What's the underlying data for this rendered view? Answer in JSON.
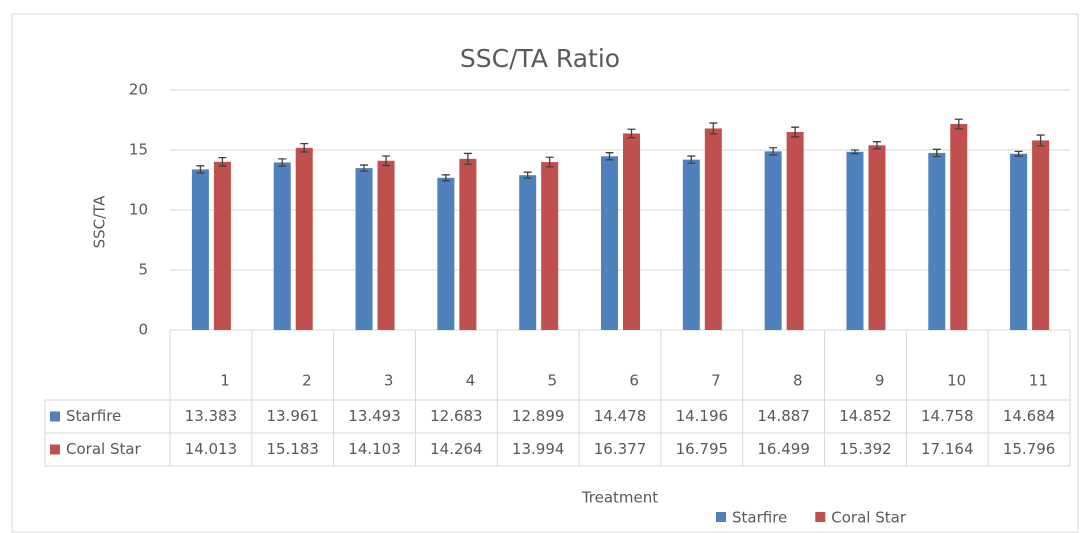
{
  "chart_data": {
    "type": "bar",
    "title": "SSC/TA Ratio",
    "y_label": "SSC/TA",
    "x_label": "Treatment",
    "categories": [
      "1",
      "2",
      "3",
      "4",
      "5",
      "6",
      "7",
      "8",
      "9",
      "10",
      "11"
    ],
    "series": [
      {
        "name": "Starfire",
        "color": "#4f81bd",
        "values": [
          13.383,
          13.961,
          13.493,
          12.683,
          12.899,
          14.478,
          14.196,
          14.887,
          14.852,
          14.758,
          14.684
        ],
        "errors": [
          0.3,
          0.3,
          0.25,
          0.25,
          0.25,
          0.3,
          0.3,
          0.3,
          0.15,
          0.3,
          0.2
        ]
      },
      {
        "name": "Coral Star",
        "color": "#c0504d",
        "values": [
          14.013,
          15.183,
          14.103,
          14.264,
          13.994,
          16.377,
          16.795,
          16.499,
          15.392,
          17.164,
          15.796
        ],
        "errors": [
          0.35,
          0.35,
          0.4,
          0.45,
          0.4,
          0.35,
          0.45,
          0.4,
          0.3,
          0.4,
          0.45
        ]
      }
    ],
    "ylim": [
      0,
      20
    ],
    "yticks": [
      0,
      5,
      10,
      15,
      20
    ],
    "grid": true,
    "data_table": true,
    "legend": "bottom"
  }
}
